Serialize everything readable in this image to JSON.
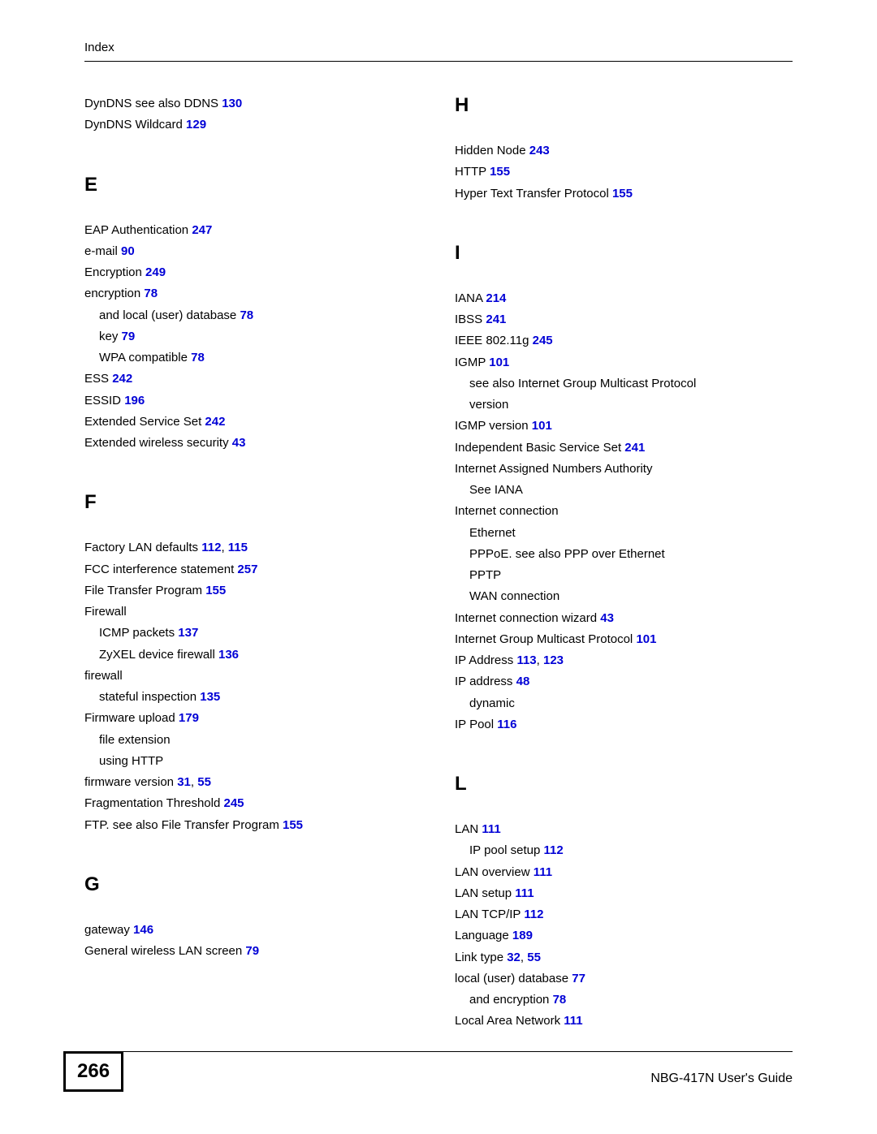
{
  "header": {
    "label": "Index"
  },
  "footer": {
    "page": "266",
    "title": "NBG-417N User's Guide"
  },
  "link_color": "#0000d6",
  "left": {
    "pre": [
      {
        "text": "DynDNS see also DDNS ",
        "pages": [
          "130"
        ]
      },
      {
        "text": "DynDNS Wildcard ",
        "pages": [
          "129"
        ]
      }
    ],
    "E": {
      "letter": "E",
      "items": [
        {
          "text": "EAP Authentication ",
          "pages": [
            "247"
          ]
        },
        {
          "text": "e-mail ",
          "pages": [
            "90"
          ]
        },
        {
          "text": "Encryption ",
          "pages": [
            "249"
          ]
        },
        {
          "text": "encryption ",
          "pages": [
            "78"
          ]
        },
        {
          "text": "and local (user) database ",
          "pages": [
            "78"
          ],
          "sub": true
        },
        {
          "text": "key ",
          "pages": [
            "79"
          ],
          "sub": true
        },
        {
          "text": "WPA compatible ",
          "pages": [
            "78"
          ],
          "sub": true
        },
        {
          "text": "ESS ",
          "pages": [
            "242"
          ]
        },
        {
          "text": "ESSID ",
          "pages": [
            "196"
          ]
        },
        {
          "text": "Extended Service Set ",
          "pages": [
            "242"
          ]
        },
        {
          "text": "Extended wireless security ",
          "pages": [
            "43"
          ]
        }
      ]
    },
    "F": {
      "letter": "F",
      "items": [
        {
          "text": "Factory LAN defaults ",
          "pages": [
            "112",
            "115"
          ]
        },
        {
          "text": "FCC interference statement ",
          "pages": [
            "257"
          ]
        },
        {
          "text": "File Transfer Program ",
          "pages": [
            "155"
          ]
        },
        {
          "text": "Firewall",
          "pages": []
        },
        {
          "text": "ICMP packets ",
          "pages": [
            "137"
          ],
          "sub": true
        },
        {
          "text": "ZyXEL device firewall ",
          "pages": [
            "136"
          ],
          "sub": true
        },
        {
          "text": "firewall",
          "pages": []
        },
        {
          "text": "stateful inspection ",
          "pages": [
            "135"
          ],
          "sub": true
        },
        {
          "text": "Firmware upload ",
          "pages": [
            "179"
          ]
        },
        {
          "text": "file extension",
          "pages": [],
          "sub": true
        },
        {
          "text": "using HTTP",
          "pages": [],
          "sub": true
        },
        {
          "text": "firmware version ",
          "pages": [
            "31",
            "55"
          ]
        },
        {
          "text": "Fragmentation Threshold ",
          "pages": [
            "245"
          ]
        },
        {
          "text": "FTP. see also File Transfer Program ",
          "pages": [
            "155"
          ]
        }
      ]
    },
    "G": {
      "letter": "G",
      "items": [
        {
          "text": "gateway ",
          "pages": [
            "146"
          ]
        },
        {
          "text": "General wireless LAN screen ",
          "pages": [
            "79"
          ]
        }
      ]
    }
  },
  "right": {
    "H": {
      "letter": "H",
      "items": [
        {
          "text": "Hidden Node ",
          "pages": [
            "243"
          ]
        },
        {
          "text": "HTTP ",
          "pages": [
            "155"
          ]
        },
        {
          "text": "Hyper Text Transfer Protocol ",
          "pages": [
            "155"
          ]
        }
      ]
    },
    "I": {
      "letter": "I",
      "items": [
        {
          "text": "IANA ",
          "pages": [
            "214"
          ]
        },
        {
          "text": "IBSS ",
          "pages": [
            "241"
          ]
        },
        {
          "text": "IEEE 802.11g ",
          "pages": [
            "245"
          ]
        },
        {
          "text": "IGMP ",
          "pages": [
            "101"
          ]
        },
        {
          "text": "see also Internet Group Multicast Protocol",
          "pages": [],
          "sub": true
        },
        {
          "text": "version",
          "pages": [],
          "sub": true
        },
        {
          "text": "IGMP version ",
          "pages": [
            "101"
          ]
        },
        {
          "text": "Independent Basic Service Set ",
          "pages": [
            "241"
          ]
        },
        {
          "text": "Internet Assigned Numbers Authority",
          "pages": []
        },
        {
          "text": "See IANA",
          "pages": [],
          "sub": true
        },
        {
          "text": "Internet connection",
          "pages": []
        },
        {
          "text": "Ethernet",
          "pages": [],
          "sub": true
        },
        {
          "text": "PPPoE. see also PPP over Ethernet",
          "pages": [],
          "sub": true
        },
        {
          "text": "PPTP",
          "pages": [],
          "sub": true
        },
        {
          "text": "WAN connection",
          "pages": [],
          "sub": true
        },
        {
          "text": "Internet connection wizard ",
          "pages": [
            "43"
          ]
        },
        {
          "text": "Internet Group Multicast Protocol ",
          "pages": [
            "101"
          ]
        },
        {
          "text": "IP Address ",
          "pages": [
            "113",
            "123"
          ]
        },
        {
          "text": "IP address ",
          "pages": [
            "48"
          ]
        },
        {
          "text": "dynamic",
          "pages": [],
          "sub": true
        },
        {
          "text": "IP Pool ",
          "pages": [
            "116"
          ]
        }
      ]
    },
    "L": {
      "letter": "L",
      "items": [
        {
          "text": "LAN ",
          "pages": [
            "111"
          ]
        },
        {
          "text": "IP pool setup ",
          "pages": [
            "112"
          ],
          "sub": true
        },
        {
          "text": "LAN overview ",
          "pages": [
            "111"
          ]
        },
        {
          "text": "LAN setup ",
          "pages": [
            "111"
          ]
        },
        {
          "text": "LAN TCP/IP ",
          "pages": [
            "112"
          ]
        },
        {
          "text": "Language ",
          "pages": [
            "189"
          ]
        },
        {
          "text": "Link type ",
          "pages": [
            "32",
            "55"
          ]
        },
        {
          "text": "local (user) database ",
          "pages": [
            "77"
          ]
        },
        {
          "text": "and encryption ",
          "pages": [
            "78"
          ],
          "sub": true
        },
        {
          "text": "Local Area Network ",
          "pages": [
            "111"
          ]
        }
      ]
    }
  }
}
